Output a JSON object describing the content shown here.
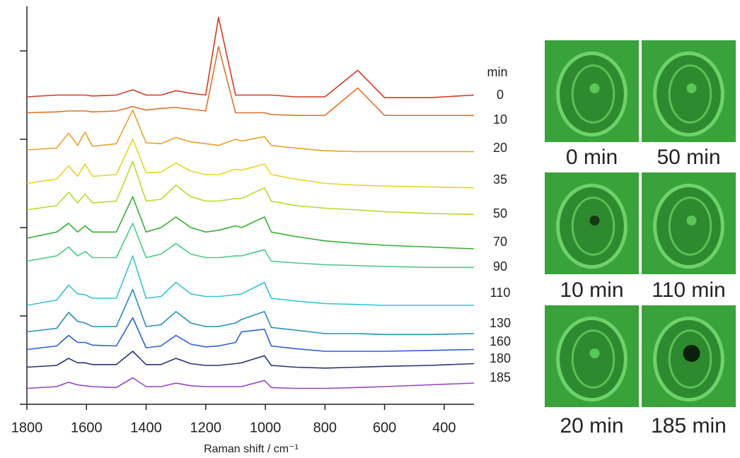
{
  "chart_data": {
    "type": "line",
    "xlabel": "Raman shift / cm⁻¹",
    "legend_title": "min",
    "x": [
      1800,
      1700,
      1660,
      1630,
      1605,
      1580,
      1500,
      1445,
      1400,
      1350,
      1300,
      1250,
      1200,
      1157,
      1100,
      1080,
      1003,
      980,
      900,
      800,
      690,
      600,
      450,
      300
    ],
    "xlim": [
      1800,
      300
    ],
    "xticks": [
      1800,
      1600,
      1400,
      1200,
      1000,
      800,
      600,
      400
    ],
    "ylim": [
      0,
      4.5
    ],
    "yticks": [
      0,
      1,
      2,
      3,
      4
    ],
    "series": [
      {
        "name": "0",
        "color": "#d03a24",
        "values": [
          3.48,
          3.5,
          3.5,
          3.5,
          3.5,
          3.49,
          3.5,
          3.56,
          3.5,
          3.5,
          3.55,
          3.52,
          3.5,
          4.38,
          3.5,
          3.5,
          3.5,
          3.5,
          3.48,
          3.48,
          3.78,
          3.47,
          3.47,
          3.5
        ]
      },
      {
        "name": "10",
        "color": "#e0702a",
        "values": [
          3.3,
          3.31,
          3.32,
          3.32,
          3.32,
          3.31,
          3.32,
          3.37,
          3.33,
          3.35,
          3.36,
          3.34,
          3.32,
          4.05,
          3.3,
          3.3,
          3.3,
          3.28,
          3.27,
          3.27,
          3.58,
          3.27,
          3.27,
          3.27
        ]
      },
      {
        "name": "20",
        "color": "#e8a028",
        "values": [
          2.88,
          2.9,
          3.07,
          2.93,
          3.08,
          2.92,
          2.95,
          3.33,
          2.96,
          2.95,
          3.02,
          2.97,
          2.95,
          2.93,
          3.0,
          2.98,
          3.03,
          2.93,
          2.9,
          2.87,
          2.86,
          2.86,
          2.86,
          2.86
        ]
      },
      {
        "name": "35",
        "color": "#e8d424",
        "values": [
          2.5,
          2.55,
          2.7,
          2.58,
          2.72,
          2.58,
          2.6,
          3.0,
          2.62,
          2.63,
          2.73,
          2.64,
          2.6,
          2.6,
          2.66,
          2.65,
          2.72,
          2.6,
          2.55,
          2.5,
          2.48,
          2.47,
          2.46,
          2.45
        ]
      },
      {
        "name": "50",
        "color": "#b4dc28",
        "values": [
          2.2,
          2.25,
          2.4,
          2.28,
          2.38,
          2.28,
          2.3,
          2.75,
          2.3,
          2.32,
          2.48,
          2.35,
          2.3,
          2.3,
          2.33,
          2.33,
          2.45,
          2.3,
          2.25,
          2.22,
          2.2,
          2.18,
          2.16,
          2.15
        ]
      },
      {
        "name": "70",
        "color": "#34b034",
        "values": [
          1.88,
          1.95,
          2.05,
          1.95,
          2.02,
          1.95,
          1.95,
          2.35,
          1.95,
          2.0,
          2.12,
          2.0,
          1.95,
          1.97,
          2.02,
          2.0,
          2.12,
          1.95,
          1.9,
          1.85,
          1.82,
          1.8,
          1.78,
          1.76
        ]
      },
      {
        "name": "90",
        "color": "#44cc84",
        "values": [
          1.62,
          1.68,
          1.78,
          1.68,
          1.73,
          1.66,
          1.66,
          2.05,
          1.66,
          1.7,
          1.82,
          1.7,
          1.66,
          1.66,
          1.68,
          1.68,
          1.75,
          1.62,
          1.6,
          1.58,
          1.57,
          1.56,
          1.55,
          1.55
        ]
      },
      {
        "name": "110",
        "color": "#34c4d0",
        "values": [
          1.12,
          1.18,
          1.35,
          1.25,
          1.24,
          1.2,
          1.2,
          1.68,
          1.2,
          1.22,
          1.38,
          1.25,
          1.22,
          1.22,
          1.24,
          1.25,
          1.38,
          1.2,
          1.17,
          1.14,
          1.13,
          1.12,
          1.12,
          1.12
        ]
      },
      {
        "name": "130",
        "color": "#2490b4",
        "values": [
          0.82,
          0.86,
          1.04,
          0.94,
          0.92,
          0.88,
          0.88,
          1.3,
          0.88,
          0.9,
          1.05,
          0.92,
          0.88,
          0.88,
          0.92,
          0.96,
          1.05,
          0.87,
          0.84,
          0.8,
          0.8,
          0.79,
          0.79,
          0.8
        ]
      },
      {
        "name": "160",
        "color": "#2860d0",
        "values": [
          0.62,
          0.66,
          0.78,
          0.7,
          0.7,
          0.67,
          0.66,
          0.98,
          0.64,
          0.66,
          0.78,
          0.68,
          0.65,
          0.66,
          0.7,
          0.82,
          0.85,
          0.66,
          0.63,
          0.6,
          0.6,
          0.6,
          0.61,
          0.62
        ]
      },
      {
        "name": "180",
        "color": "#243474",
        "values": [
          0.42,
          0.44,
          0.52,
          0.47,
          0.47,
          0.45,
          0.45,
          0.6,
          0.45,
          0.45,
          0.52,
          0.46,
          0.44,
          0.44,
          0.46,
          0.47,
          0.55,
          0.44,
          0.42,
          0.41,
          0.42,
          0.43,
          0.44,
          0.46
        ]
      },
      {
        "name": "185",
        "color": "#9444c4",
        "values": [
          0.18,
          0.2,
          0.25,
          0.22,
          0.21,
          0.2,
          0.19,
          0.3,
          0.2,
          0.2,
          0.24,
          0.21,
          0.2,
          0.2,
          0.2,
          0.2,
          0.27,
          0.19,
          0.18,
          0.18,
          0.19,
          0.2,
          0.22,
          0.24
        ]
      }
    ]
  },
  "panels": [
    {
      "caption": "0 min"
    },
    {
      "caption": "50 min"
    },
    {
      "caption": "10 min"
    },
    {
      "caption": "110 min"
    },
    {
      "caption": "20 min"
    },
    {
      "caption": "185 min"
    }
  ]
}
